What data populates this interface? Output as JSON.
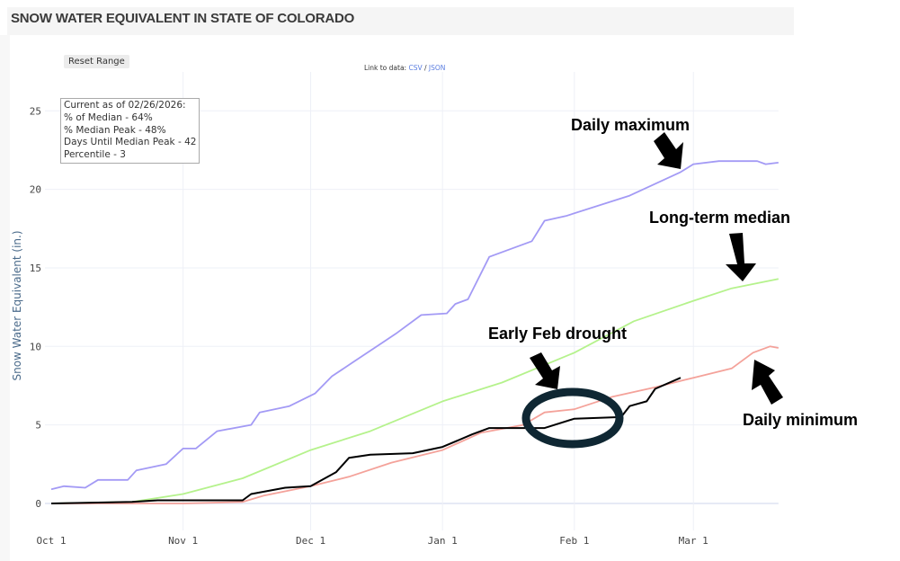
{
  "header": {
    "title": "SNOW WATER EQUIVALENT IN STATE OF COLORADO"
  },
  "controls": {
    "reset_label": "Reset Range"
  },
  "links": {
    "prefix": "Link to data:",
    "csv": "CSV",
    "separator": "/",
    "json": "JSON"
  },
  "infobox": {
    "lines": [
      "Current as of 02/26/2026:",
      "% of Median - 64%",
      "% Median Peak - 48%",
      "Days Until Median Peak - 42",
      "Percentile - 3"
    ]
  },
  "chart_data": {
    "type": "line",
    "title": "SNOW WATER EQUIVALENT IN STATE OF COLORADO",
    "xlabel": "",
    "ylabel": "Snow Water Equivalent (in.)",
    "xlim": [
      "2025-10-01",
      "2026-03-21"
    ],
    "ylim": [
      -1.5,
      27
    ],
    "grid": true,
    "x_tick_labels": [
      "Oct 1",
      "Nov 1",
      "Dec 1",
      "Jan 1",
      "Feb 1",
      "Mar 1"
    ],
    "x_tick_dates": [
      "2025-10-01",
      "2025-11-01",
      "2025-12-01",
      "2026-01-01",
      "2026-02-01",
      "2026-03-01"
    ],
    "y_ticks": [
      0,
      5,
      10,
      15,
      20,
      25
    ],
    "series": [
      {
        "key": "maximum",
        "color": "#a39af5",
        "points": [
          [
            "2025-10-01",
            0.9
          ],
          [
            "2025-10-04",
            1.1
          ],
          [
            "2025-10-09",
            1.0
          ],
          [
            "2025-10-12",
            1.5
          ],
          [
            "2025-10-19",
            1.5
          ],
          [
            "2025-10-21",
            2.1
          ],
          [
            "2025-10-28",
            2.5
          ],
          [
            "2025-11-01",
            3.5
          ],
          [
            "2025-11-04",
            3.5
          ],
          [
            "2025-11-09",
            4.6
          ],
          [
            "2025-11-17",
            5.0
          ],
          [
            "2025-11-19",
            5.8
          ],
          [
            "2025-11-26",
            6.2
          ],
          [
            "2025-12-02",
            7.0
          ],
          [
            "2025-12-06",
            8.1
          ],
          [
            "2025-12-11",
            9.0
          ],
          [
            "2025-12-21",
            10.8
          ],
          [
            "2025-12-27",
            12.0
          ],
          [
            "2026-01-02",
            12.1
          ],
          [
            "2026-01-04",
            12.7
          ],
          [
            "2026-01-07",
            13.0
          ],
          [
            "2026-01-12",
            15.7
          ],
          [
            "2026-01-22",
            16.7
          ],
          [
            "2026-01-25",
            18.0
          ],
          [
            "2026-01-30",
            18.3
          ],
          [
            "2026-02-14",
            19.6
          ],
          [
            "2026-02-26",
            21.1
          ],
          [
            "2026-03-01",
            21.6
          ],
          [
            "2026-03-07",
            21.8
          ],
          [
            "2026-03-16",
            21.8
          ],
          [
            "2026-03-18",
            21.6
          ],
          [
            "2026-03-21",
            21.7
          ]
        ]
      },
      {
        "key": "median",
        "color": "#b5f28c",
        "points": [
          [
            "2025-10-01",
            0.0
          ],
          [
            "2025-10-20",
            0.1
          ],
          [
            "2025-11-01",
            0.6
          ],
          [
            "2025-11-15",
            1.6
          ],
          [
            "2025-12-01",
            3.4
          ],
          [
            "2025-12-15",
            4.6
          ],
          [
            "2026-01-01",
            6.5
          ],
          [
            "2026-01-15",
            7.7
          ],
          [
            "2026-02-01",
            9.6
          ],
          [
            "2026-02-15",
            11.6
          ],
          [
            "2026-03-01",
            12.9
          ],
          [
            "2026-03-10",
            13.7
          ],
          [
            "2026-03-21",
            14.3
          ]
        ]
      },
      {
        "key": "minimum",
        "color": "#f4a29a",
        "points": [
          [
            "2025-10-01",
            0.0
          ],
          [
            "2025-11-01",
            0.0
          ],
          [
            "2025-11-15",
            0.1
          ],
          [
            "2025-11-20",
            0.5
          ],
          [
            "2025-12-01",
            1.1
          ],
          [
            "2025-12-10",
            1.7
          ],
          [
            "2025-12-20",
            2.6
          ],
          [
            "2026-01-01",
            3.4
          ],
          [
            "2026-01-10",
            4.5
          ],
          [
            "2026-01-20",
            5.0
          ],
          [
            "2026-01-25",
            5.8
          ],
          [
            "2026-02-01",
            6.0
          ],
          [
            "2026-02-10",
            6.8
          ],
          [
            "2026-02-20",
            7.4
          ],
          [
            "2026-03-01",
            8.0
          ],
          [
            "2026-03-10",
            8.6
          ],
          [
            "2026-03-15",
            9.6
          ],
          [
            "2026-03-19",
            10.0
          ],
          [
            "2026-03-21",
            9.9
          ]
        ]
      },
      {
        "key": "current",
        "color": "#000000",
        "points": [
          [
            "2025-10-01",
            0.0
          ],
          [
            "2025-10-20",
            0.1
          ],
          [
            "2025-10-26",
            0.2
          ],
          [
            "2025-11-15",
            0.2
          ],
          [
            "2025-11-17",
            0.6
          ],
          [
            "2025-11-25",
            1.0
          ],
          [
            "2025-12-01",
            1.1
          ],
          [
            "2025-12-07",
            2.0
          ],
          [
            "2025-12-10",
            2.9
          ],
          [
            "2025-12-15",
            3.1
          ],
          [
            "2025-12-25",
            3.2
          ],
          [
            "2026-01-01",
            3.6
          ],
          [
            "2026-01-08",
            4.4
          ],
          [
            "2026-01-12",
            4.8
          ],
          [
            "2026-01-25",
            4.8
          ],
          [
            "2026-02-01",
            5.4
          ],
          [
            "2026-02-12",
            5.5
          ],
          [
            "2026-02-14",
            6.2
          ],
          [
            "2026-02-18",
            6.5
          ],
          [
            "2026-02-20",
            7.3
          ],
          [
            "2026-02-26",
            8.0
          ]
        ]
      }
    ],
    "annotations": [
      "Daily maximum",
      "Long-term median",
      "Early Feb drought",
      "Daily minimum"
    ]
  }
}
